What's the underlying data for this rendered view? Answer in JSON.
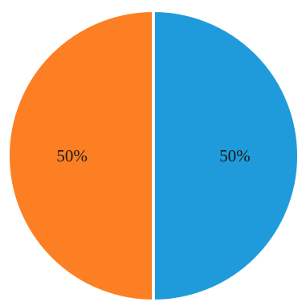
{
  "chart_data": {
    "type": "pie",
    "title": "",
    "slices": [
      {
        "value": 50,
        "label": "50%",
        "color": "#1f9bdb"
      },
      {
        "value": 50,
        "label": "50%",
        "color": "#fd7f23"
      }
    ],
    "start": "top",
    "direction": "clockwise",
    "separator_color": "#ffffff",
    "legend": "none"
  }
}
